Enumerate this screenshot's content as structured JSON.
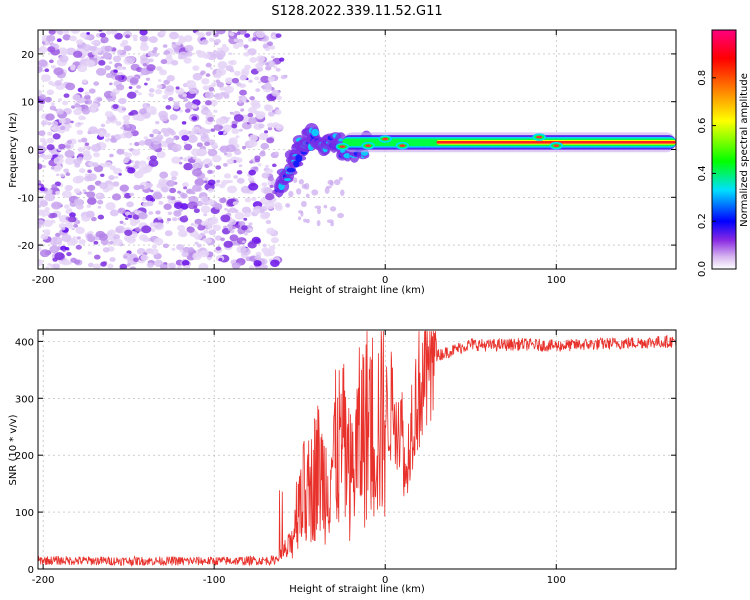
{
  "title": "S128.2022.339.11.52.G11",
  "chart_data": [
    {
      "type": "heatmap",
      "xlabel": "Height of straight line (km)",
      "ylabel": "Frequency (Hz)",
      "xlim": [
        -203,
        170
      ],
      "ylim": [
        -25,
        25
      ],
      "xticks": [
        -200,
        -100,
        0,
        100
      ],
      "yticks": [
        -20,
        -10,
        0,
        10,
        20
      ],
      "grid": true,
      "colorbar": {
        "label": "Normalized spectral amplitude",
        "range": [
          0,
          1
        ],
        "ticks": [
          0.0,
          0.2,
          0.4,
          0.6,
          0.8
        ],
        "colormap": [
          "#ffffff",
          "#d8b8f0",
          "#8a2be2",
          "#0000ff",
          "#00e0ff",
          "#00ff00",
          "#ffff00",
          "#ff8000",
          "#ff0000",
          "#ff0080"
        ]
      },
      "features": {
        "noise_region_x": [
          -203,
          -62
        ],
        "sweep": [
          [
            -62,
            -8
          ],
          [
            -55,
            -3
          ],
          [
            -50,
            0
          ],
          [
            -45,
            2
          ],
          [
            -40,
            2
          ],
          [
            -30,
            1
          ],
          [
            -20,
            0.5
          ],
          [
            -10,
            0.8
          ]
        ],
        "signal_band": {
          "x": [
            -25,
            170
          ],
          "center_hz": 1.5,
          "width_hz": 1.6
        }
      }
    },
    {
      "type": "line",
      "xlabel": "Height of straight line (km)",
      "ylabel": "SNR (10 * v/v)",
      "xlim": [
        -203,
        170
      ],
      "ylim": [
        0,
        420
      ],
      "xticks": [
        -200,
        -100,
        0,
        100
      ],
      "yticks": [
        0,
        100,
        200,
        300,
        400
      ],
      "grid": true,
      "color": "#e8312b",
      "series": [
        {
          "x": [
            -203,
            -150,
            -100,
            -65,
            -55,
            -50,
            -45,
            -40,
            -35,
            -30,
            -25,
            -20,
            -15,
            -10,
            -5,
            0,
            5,
            10,
            12,
            15,
            20,
            25,
            30,
            40,
            50,
            60,
            80,
            100,
            120,
            150,
            170
          ],
          "values": [
            15,
            14,
            14,
            15,
            40,
            140,
            120,
            180,
            150,
            200,
            220,
            160,
            230,
            260,
            250,
            270,
            290,
            240,
            150,
            260,
            320,
            350,
            375,
            385,
            395,
            393,
            395,
            392,
            395,
            398,
            400
          ]
        }
      ]
    }
  ]
}
